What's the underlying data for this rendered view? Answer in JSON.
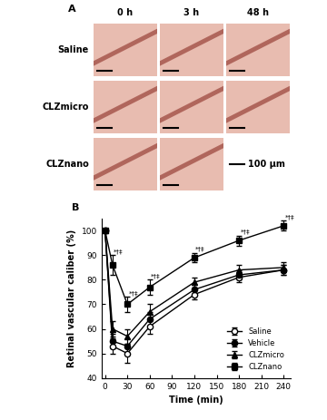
{
  "panel_a": {
    "label": "A",
    "columns": [
      "0 h",
      "3 h",
      "48 h"
    ],
    "rows": [
      {
        "label": "Saline",
        "images": 3
      },
      {
        "label": "CLZmicro",
        "images": 3
      },
      {
        "label": "CLZnano",
        "images": 2
      }
    ],
    "scale_bar": "100 μm"
  },
  "chart_data": {
    "type": "line",
    "panel_label": "B",
    "x_label": "Time (min)",
    "y_label": "Retinal vascular caliber (%)",
    "x": [
      0,
      10,
      30,
      60,
      120,
      180,
      240
    ],
    "xlim": [
      -5,
      250
    ],
    "xticks": [
      0,
      30,
      60,
      90,
      120,
      150,
      180,
      210,
      240
    ],
    "ylim": [
      40,
      105
    ],
    "yticks": [
      40,
      50,
      60,
      70,
      80,
      90,
      100
    ],
    "legend": "lower right",
    "series": [
      {
        "name": "Saline",
        "color": "#000000",
        "marker": "circle_open",
        "values": [
          100,
          53,
          50,
          61,
          74,
          81,
          84
        ],
        "errors": [
          0,
          3,
          4,
          3,
          2,
          2,
          2
        ]
      },
      {
        "name": "Vehicle",
        "color": "#000000",
        "marker": "circle",
        "values": [
          100,
          55,
          53,
          64,
          76,
          82,
          84
        ],
        "errors": [
          0,
          3,
          3,
          3,
          2,
          2,
          2
        ]
      },
      {
        "name": "CLZmicro",
        "color": "#000000",
        "marker": "triangle",
        "values": [
          100,
          60,
          57,
          67,
          79,
          84,
          85
        ],
        "errors": [
          0,
          3,
          3,
          3,
          2,
          2,
          2
        ]
      },
      {
        "name": "CLZnano",
        "color": "#000000",
        "marker": "square",
        "values": [
          100,
          86,
          70,
          77,
          89,
          96,
          102
        ],
        "errors": [
          0,
          4,
          3,
          3,
          2,
          2,
          2
        ]
      }
    ],
    "annotations": {
      "series": "CLZnano",
      "text": "*†‡",
      "x": [
        10,
        30,
        60,
        120,
        180,
        240
      ]
    }
  }
}
